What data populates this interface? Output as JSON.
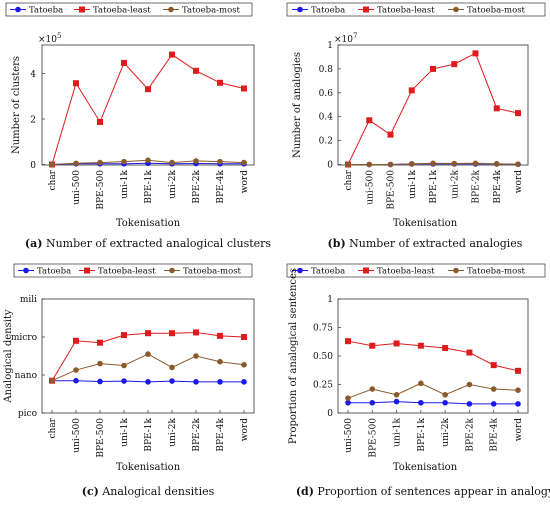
{
  "colors": {
    "Tatoeba": "#1a1aee",
    "Tatoeba-least": "#e01b1b",
    "Tatoeba-most": "#8b5a2b"
  },
  "legend_labels": [
    "Tatoeba",
    "Tatoeba-least",
    "Tatoeba-most"
  ],
  "panels": {
    "a": {
      "caption_letter": "(a)",
      "caption_text": "Number of extracted analogical clusters",
      "xlabel": "Tokenisation",
      "ylabel": "Number of clusters",
      "exponent": "×10",
      "exponent_power": "5",
      "categories": [
        "char",
        "uni-500",
        "BPE-500",
        "uni-1k",
        "BPE-1k",
        "uni-2k",
        "BPE-2k",
        "BPE-4k",
        "word"
      ],
      "yticks": [
        "0",
        "2",
        "4"
      ]
    },
    "b": {
      "caption_letter": "(b)",
      "caption_text": "Number of extracted analogies",
      "xlabel": "Tokenisation",
      "ylabel": "Number of analogies",
      "exponent": "×10",
      "exponent_power": "7",
      "categories": [
        "char",
        "uni-500",
        "BPE-500",
        "uni-1k",
        "BPE-1k",
        "uni-2k",
        "BPE-2k",
        "BPE-4k",
        "word"
      ],
      "yticks": [
        "0",
        "0.2",
        "0.4",
        "0.6",
        "0.8",
        "1"
      ]
    },
    "c": {
      "caption_letter": "(c)",
      "caption_text": "Analogical densities",
      "xlabel": "Tokenisation",
      "ylabel": "Analogical density",
      "categories": [
        "char",
        "uni-500",
        "BPE-500",
        "uni-1k",
        "BPE-1k",
        "uni-2k",
        "BPE-2k",
        "BPE-4k",
        "word"
      ],
      "yticks": [
        "pico",
        "nano",
        "micro",
        "mili"
      ]
    },
    "d": {
      "caption_letter": "(d)",
      "caption_text": "Proportion of sentences appear in analogy",
      "xlabel": "Tokenisation",
      "ylabel": "Proportion of analogical sentences",
      "categories": [
        "uni-500",
        "BPE-500",
        "uni-1k",
        "BPE-1k",
        "uni-2k",
        "BPE-2k",
        "BPE-4k",
        "word"
      ],
      "yticks": [
        "0",
        "0.25",
        "0.50",
        "0.75",
        "1"
      ]
    }
  },
  "chart_data": [
    {
      "type": "line",
      "panel": "a",
      "ylim": [
        0,
        5
      ],
      "y_unit_multiplier": "1e5",
      "grid": false,
      "legend": "top",
      "series": [
        {
          "name": "Tatoeba",
          "values": [
            0.0,
            0.03,
            0.03,
            0.03,
            0.05,
            0.03,
            0.04,
            0.03,
            0.03
          ]
        },
        {
          "name": "Tatoeba-least",
          "values": [
            0.0,
            3.4,
            1.78,
            4.25,
            3.15,
            4.6,
            3.92,
            3.42,
            3.18
          ]
        },
        {
          "name": "Tatoeba-most",
          "values": [
            0.0,
            0.05,
            0.08,
            0.12,
            0.18,
            0.08,
            0.15,
            0.12,
            0.08
          ]
        }
      ]
    },
    {
      "type": "line",
      "panel": "b",
      "ylim": [
        0,
        1
      ],
      "y_unit_multiplier": "1e7",
      "grid": false,
      "legend": "top",
      "series": [
        {
          "name": "Tatoeba",
          "values": [
            0.0,
            0.0,
            0.0,
            0.005,
            0.005,
            0.005,
            0.005,
            0.005,
            0.002
          ]
        },
        {
          "name": "Tatoeba-least",
          "values": [
            0.0,
            0.37,
            0.25,
            0.62,
            0.8,
            0.84,
            0.93,
            0.47,
            0.43
          ]
        },
        {
          "name": "Tatoeba-most",
          "values": [
            0.0,
            0.0,
            0.0,
            0.005,
            0.01,
            0.008,
            0.01,
            0.005,
            0.002
          ]
        }
      ]
    },
    {
      "type": "line",
      "panel": "c",
      "ylim": [
        0,
        3
      ],
      "y_scale": "log-named",
      "grid": false,
      "legend": "top",
      "series": [
        {
          "name": "Tatoeba",
          "values": [
            0.85,
            0.85,
            0.83,
            0.84,
            0.82,
            0.84,
            0.82,
            0.82,
            0.82
          ]
        },
        {
          "name": "Tatoeba-least",
          "values": [
            0.85,
            1.9,
            1.85,
            2.05,
            2.1,
            2.1,
            2.12,
            2.03,
            2.0
          ]
        },
        {
          "name": "Tatoeba-most",
          "values": [
            0.85,
            1.13,
            1.3,
            1.25,
            1.55,
            1.2,
            1.5,
            1.35,
            1.27
          ]
        }
      ]
    },
    {
      "type": "line",
      "panel": "d",
      "ylim": [
        0,
        1
      ],
      "grid": false,
      "legend": "top",
      "series": [
        {
          "name": "Tatoeba",
          "values": [
            0.09,
            0.09,
            0.1,
            0.09,
            0.09,
            0.08,
            0.08,
            0.08
          ]
        },
        {
          "name": "Tatoeba-least",
          "values": [
            0.63,
            0.59,
            0.61,
            0.59,
            0.57,
            0.53,
            0.42,
            0.37
          ]
        },
        {
          "name": "Tatoeba-most",
          "values": [
            0.13,
            0.21,
            0.16,
            0.26,
            0.16,
            0.25,
            0.21,
            0.2
          ]
        }
      ]
    }
  ]
}
